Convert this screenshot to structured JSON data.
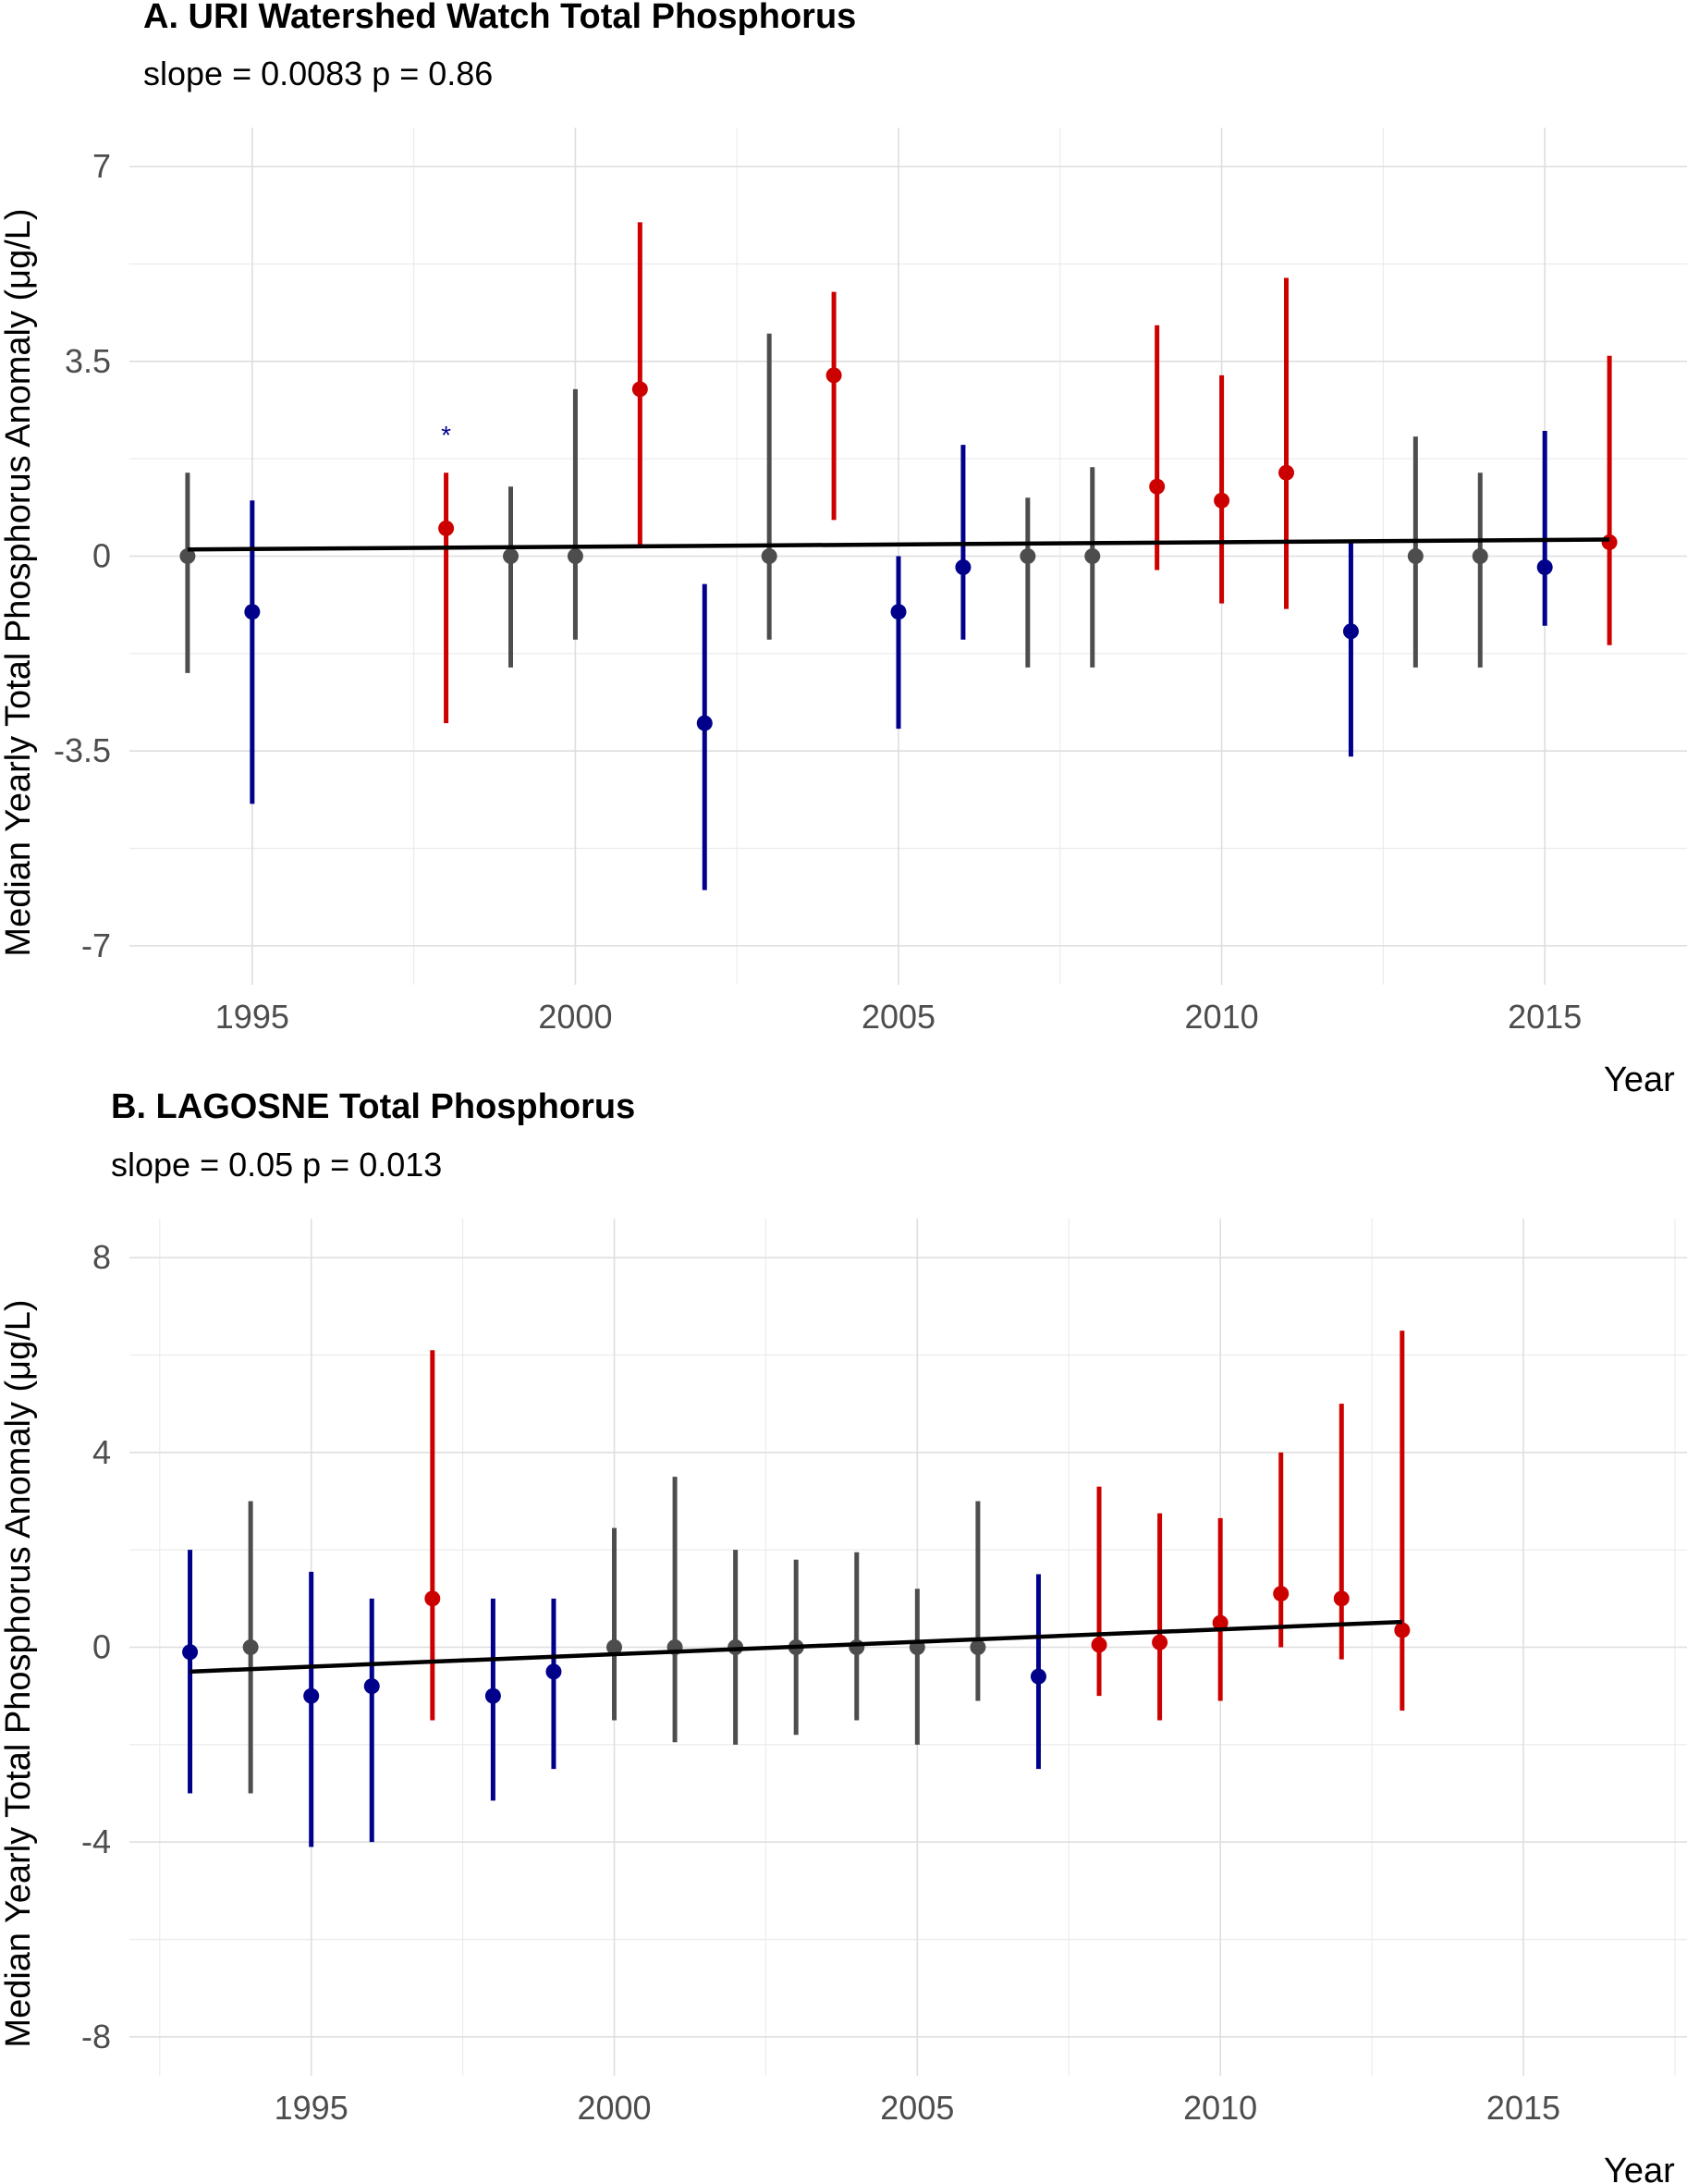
{
  "colors": {
    "low": "#00008b",
    "neutral": "#4d4d4d",
    "high": "#cd0000",
    "trend": "#000000"
  },
  "chart_data": [
    {
      "type": "scatter",
      "title": "A. URI Watershed Watch Total Phosphorus",
      "subtitle": "slope = 0.0083 p = 0.86",
      "xlabel": "Year",
      "ylabel": "Median Yearly Total Phosphorus Anomaly (μg/L)",
      "xlim": [
        1993.1,
        2017.2
      ],
      "ylim": [
        -7.7,
        7.7
      ],
      "xticks": [
        1995,
        2000,
        2005,
        2010,
        2015
      ],
      "yticks": [
        7,
        3.5,
        0,
        -3.5,
        -7
      ],
      "ytick_labels": [
        "7",
        "3.5",
        "0",
        "-3.5",
        "-7"
      ],
      "grid": true,
      "points": [
        {
          "x": 1994,
          "y": 0,
          "lo": -2.1,
          "hi": 1.5,
          "group": "neutral"
        },
        {
          "x": 1995,
          "y": -1.0,
          "lo": -4.45,
          "hi": 1.0,
          "group": "low"
        },
        {
          "x": 1998,
          "y": 0.5,
          "lo": -3.0,
          "hi": 1.5,
          "group": "high"
        },
        {
          "x": 1999,
          "y": 0,
          "lo": -2.0,
          "hi": 1.25,
          "group": "neutral"
        },
        {
          "x": 2000,
          "y": 0,
          "lo": -1.5,
          "hi": 3.0,
          "group": "neutral"
        },
        {
          "x": 2001,
          "y": 3.0,
          "lo": 0.2,
          "hi": 6.0,
          "group": "high"
        },
        {
          "x": 2002,
          "y": -3.0,
          "lo": -6.0,
          "hi": -0.5,
          "group": "low"
        },
        {
          "x": 2003,
          "y": 0,
          "lo": -1.5,
          "hi": 4.0,
          "group": "neutral"
        },
        {
          "x": 2004,
          "y": 3.25,
          "lo": 0.65,
          "hi": 4.75,
          "group": "high"
        },
        {
          "x": 2005,
          "y": -1.0,
          "lo": -3.1,
          "hi": 0,
          "group": "low"
        },
        {
          "x": 2006,
          "y": -0.2,
          "lo": -1.5,
          "hi": 2.0,
          "group": "low"
        },
        {
          "x": 2007,
          "y": 0,
          "lo": -2.0,
          "hi": 1.05,
          "group": "neutral"
        },
        {
          "x": 2008,
          "y": 0,
          "lo": -2.0,
          "hi": 1.6,
          "group": "neutral"
        },
        {
          "x": 2009,
          "y": 1.25,
          "lo": -0.25,
          "hi": 4.15,
          "group": "high"
        },
        {
          "x": 2010,
          "y": 1.0,
          "lo": -0.85,
          "hi": 3.25,
          "group": "high"
        },
        {
          "x": 2011,
          "y": 1.5,
          "lo": -0.95,
          "hi": 5.0,
          "group": "high"
        },
        {
          "x": 2012,
          "y": -1.35,
          "lo": -3.6,
          "hi": 0.25,
          "group": "low"
        },
        {
          "x": 2013,
          "y": 0,
          "lo": -2.0,
          "hi": 2.15,
          "group": "neutral"
        },
        {
          "x": 2014,
          "y": 0,
          "lo": -2.0,
          "hi": 1.5,
          "group": "neutral"
        },
        {
          "x": 2015,
          "y": -0.2,
          "lo": -1.25,
          "hi": 2.25,
          "group": "low"
        },
        {
          "x": 2016,
          "y": 0.25,
          "lo": -1.6,
          "hi": 3.6,
          "group": "high"
        }
      ],
      "trend": {
        "x0": 1994,
        "y0": 0.12,
        "x1": 2016,
        "y1": 0.3
      },
      "annotations": [
        {
          "text": "*",
          "x": 1998,
          "y": 2.25,
          "color": "#00008b"
        }
      ]
    },
    {
      "type": "scatter",
      "title": "B. LAGOSNE Total Phosphorus",
      "subtitle": "slope = 0.05 p = 0.013",
      "xlabel": "Year",
      "ylabel": "Median Yearly Total Phosphorus Anomaly (μg/L)",
      "xlim": [
        1992.0,
        2017.7
      ],
      "ylim": [
        -8.8,
        8.8
      ],
      "xticks": [
        1995,
        2000,
        2005,
        2010,
        2015
      ],
      "yticks": [
        8,
        4,
        0,
        -4,
        -8
      ],
      "ytick_labels": [
        "8",
        "4",
        "0",
        "-4",
        "-8"
      ],
      "grid": true,
      "points": [
        {
          "x": 1993,
          "y": -0.1,
          "lo": -3.0,
          "hi": 2.0,
          "group": "low"
        },
        {
          "x": 1994,
          "y": 0,
          "lo": -3.0,
          "hi": 3.0,
          "group": "neutral"
        },
        {
          "x": 1995,
          "y": -1.0,
          "lo": -4.1,
          "hi": 1.55,
          "group": "low"
        },
        {
          "x": 1996,
          "y": -0.8,
          "lo": -4.0,
          "hi": 1.0,
          "group": "low"
        },
        {
          "x": 1997,
          "y": 1.0,
          "lo": -1.5,
          "hi": 6.1,
          "group": "high"
        },
        {
          "x": 1998,
          "y": -1.0,
          "lo": -3.15,
          "hi": 1.0,
          "group": "low"
        },
        {
          "x": 1999,
          "y": -0.5,
          "lo": -2.5,
          "hi": 1.0,
          "group": "low"
        },
        {
          "x": 2000,
          "y": 0,
          "lo": -1.5,
          "hi": 2.45,
          "group": "neutral"
        },
        {
          "x": 2001,
          "y": 0,
          "lo": -1.95,
          "hi": 3.5,
          "group": "neutral"
        },
        {
          "x": 2002,
          "y": 0,
          "lo": -2.0,
          "hi": 2.0,
          "group": "neutral"
        },
        {
          "x": 2003,
          "y": 0,
          "lo": -1.8,
          "hi": 1.8,
          "group": "neutral"
        },
        {
          "x": 2004,
          "y": 0,
          "lo": -1.5,
          "hi": 1.95,
          "group": "neutral"
        },
        {
          "x": 2005,
          "y": 0,
          "lo": -2.0,
          "hi": 1.2,
          "group": "neutral"
        },
        {
          "x": 2006,
          "y": 0,
          "lo": -1.1,
          "hi": 3.0,
          "group": "neutral"
        },
        {
          "x": 2007,
          "y": -0.6,
          "lo": -2.5,
          "hi": 1.5,
          "group": "low"
        },
        {
          "x": 2008,
          "y": 0.05,
          "lo": -1.0,
          "hi": 3.3,
          "group": "high"
        },
        {
          "x": 2009,
          "y": 0.1,
          "lo": -1.5,
          "hi": 2.75,
          "group": "high"
        },
        {
          "x": 2010,
          "y": 0.5,
          "lo": -1.1,
          "hi": 2.65,
          "group": "high"
        },
        {
          "x": 2011,
          "y": 1.1,
          "lo": 0,
          "hi": 4.0,
          "group": "high"
        },
        {
          "x": 2012,
          "y": 1.0,
          "lo": -0.25,
          "hi": 5.0,
          "group": "high"
        },
        {
          "x": 2013,
          "y": 0.35,
          "lo": -1.3,
          "hi": 6.5,
          "group": "high"
        }
      ],
      "trend": {
        "x0": 1993,
        "y0": -0.5,
        "x1": 2013,
        "y1": 0.52
      },
      "annotations": []
    }
  ]
}
